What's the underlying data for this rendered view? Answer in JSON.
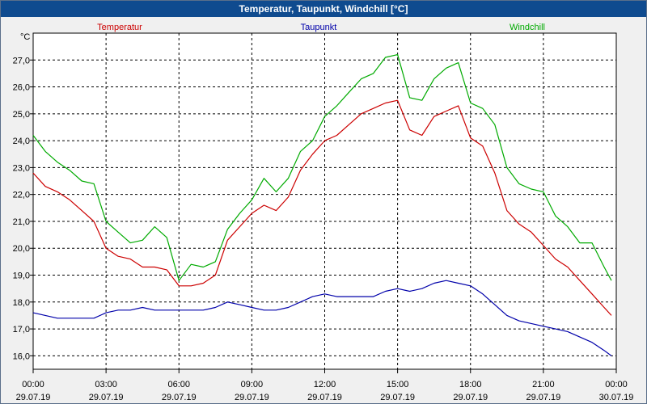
{
  "window": {
    "title": "Temperatur, Taupunkt, Windchill [°C]"
  },
  "chart_data": {
    "type": "line",
    "title": "Temperatur, Taupunkt, Windchill [°C]",
    "ylabel": "°C",
    "ylim": [
      15.5,
      28.0
    ],
    "y_ticks": [
      "16,0",
      "17,0",
      "18,0",
      "19,0",
      "20,0",
      "21,0",
      "22,0",
      "23,0",
      "24,0",
      "25,0",
      "26,0",
      "27,0"
    ],
    "y_tick_values": [
      16,
      17,
      18,
      19,
      20,
      21,
      22,
      23,
      24,
      25,
      26,
      27
    ],
    "x_tick_values": [
      0,
      3,
      6,
      9,
      12,
      15,
      18,
      21,
      24
    ],
    "x_ticks": [
      {
        "time": "00:00",
        "date": "29.07.19"
      },
      {
        "time": "03:00",
        "date": "29.07.19"
      },
      {
        "time": "06:00",
        "date": "29.07.19"
      },
      {
        "time": "09:00",
        "date": "29.07.19"
      },
      {
        "time": "12:00",
        "date": "29.07.19"
      },
      {
        "time": "15:00",
        "date": "29.07.19"
      },
      {
        "time": "18:00",
        "date": "29.07.19"
      },
      {
        "time": "21:00",
        "date": "29.07.19"
      },
      {
        "time": "00:00",
        "date": "30.07.19"
      }
    ],
    "grid": true,
    "series": [
      {
        "name": "Temperatur",
        "color": "#cc0000",
        "x": [
          0,
          0.5,
          1,
          1.5,
          2,
          2.5,
          3,
          3.5,
          4,
          4.5,
          5,
          5.5,
          6,
          6.5,
          7,
          7.5,
          8,
          8.5,
          9,
          9.5,
          10,
          10.5,
          11,
          11.5,
          12,
          12.5,
          13,
          13.5,
          14,
          14.5,
          15,
          15.5,
          16,
          16.5,
          17,
          17.5,
          18,
          18.5,
          19,
          19.5,
          20,
          20.5,
          21,
          21.5,
          22,
          22.5,
          23,
          23.5,
          23.8
        ],
        "values": [
          22.8,
          22.3,
          22.1,
          21.8,
          21.4,
          21.0,
          20.0,
          19.7,
          19.6,
          19.3,
          19.3,
          19.2,
          18.6,
          18.6,
          18.7,
          19.0,
          20.3,
          20.8,
          21.3,
          21.6,
          21.4,
          21.9,
          22.9,
          23.5,
          24.0,
          24.2,
          24.6,
          25.0,
          25.2,
          25.4,
          25.5,
          24.4,
          24.2,
          24.9,
          25.1,
          25.3,
          24.1,
          23.8,
          22.8,
          21.4,
          20.9,
          20.6,
          20.1,
          19.6,
          19.3,
          18.8,
          18.3,
          17.8,
          17.5
        ]
      },
      {
        "name": "Taupunkt",
        "color": "#0000aa",
        "x": [
          0,
          0.5,
          1,
          1.5,
          2,
          2.5,
          3,
          3.5,
          4,
          4.5,
          5,
          5.5,
          6,
          6.5,
          7,
          7.5,
          8,
          8.5,
          9,
          9.5,
          10,
          10.5,
          11,
          11.5,
          12,
          12.5,
          13,
          13.5,
          14,
          14.5,
          15,
          15.5,
          16,
          16.5,
          17,
          17.5,
          18,
          18.5,
          19,
          19.5,
          20,
          20.5,
          21,
          21.5,
          22,
          22.5,
          23,
          23.5,
          23.8
        ],
        "values": [
          17.6,
          17.5,
          17.4,
          17.4,
          17.4,
          17.4,
          17.6,
          17.7,
          17.7,
          17.8,
          17.7,
          17.7,
          17.7,
          17.7,
          17.7,
          17.8,
          18.0,
          17.9,
          17.8,
          17.7,
          17.7,
          17.8,
          18.0,
          18.2,
          18.3,
          18.2,
          18.2,
          18.2,
          18.2,
          18.4,
          18.5,
          18.4,
          18.5,
          18.7,
          18.8,
          18.7,
          18.6,
          18.3,
          17.9,
          17.5,
          17.3,
          17.2,
          17.1,
          17.0,
          16.9,
          16.7,
          16.5,
          16.2,
          16.0
        ]
      },
      {
        "name": "Windchill",
        "color": "#00aa00",
        "x": [
          0,
          0.5,
          1,
          1.5,
          2,
          2.5,
          3,
          3.5,
          4,
          4.5,
          5,
          5.5,
          6,
          6.5,
          7,
          7.5,
          8,
          8.5,
          9,
          9.5,
          10,
          10.5,
          11,
          11.5,
          12,
          12.5,
          13,
          13.5,
          14,
          14.5,
          15,
          15.5,
          16,
          16.5,
          17,
          17.5,
          18,
          18.5,
          19,
          19.5,
          20,
          20.5,
          21,
          21.5,
          22,
          22.5,
          23,
          23.5,
          23.8
        ],
        "values": [
          24.2,
          23.6,
          23.2,
          22.9,
          22.5,
          22.4,
          21.0,
          20.6,
          20.2,
          20.3,
          20.8,
          20.4,
          18.8,
          19.4,
          19.3,
          19.5,
          20.7,
          21.3,
          21.8,
          22.6,
          22.1,
          22.6,
          23.6,
          24.0,
          24.9,
          25.3,
          25.8,
          26.3,
          26.5,
          27.1,
          27.2,
          25.6,
          25.5,
          26.3,
          26.7,
          26.9,
          25.4,
          25.2,
          24.6,
          23.0,
          22.4,
          22.2,
          22.1,
          21.2,
          20.8,
          20.2,
          20.2,
          19.3,
          18.8
        ]
      }
    ]
  }
}
